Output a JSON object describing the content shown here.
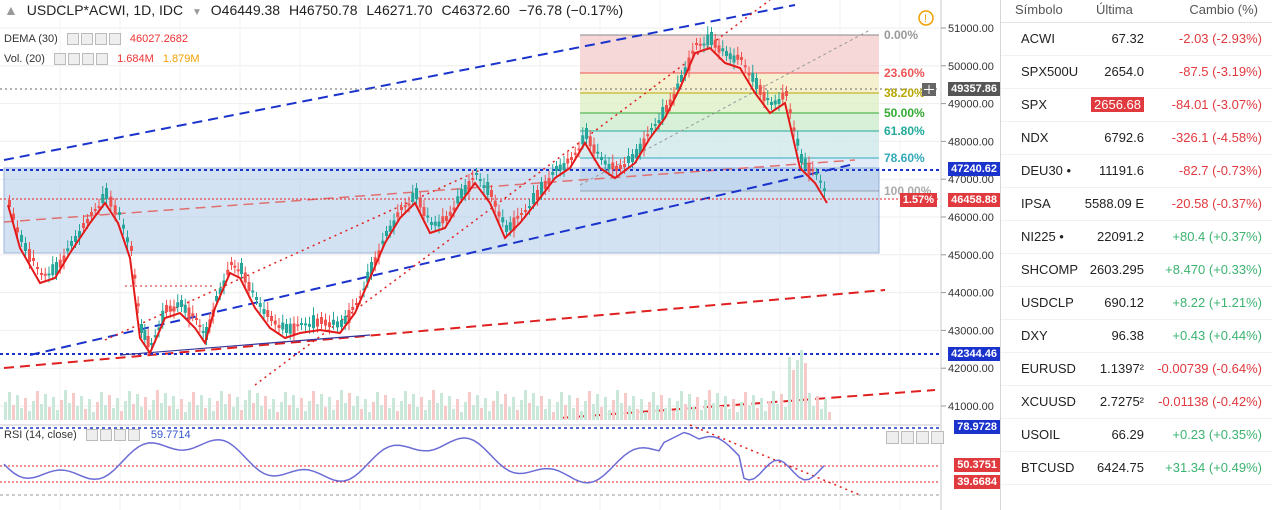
{
  "legend": {
    "symbol": "USDCLP*ACWI, 1D, IDC",
    "open": "O46449.38",
    "high": "H46750.78",
    "low": "L46271.70",
    "close": "C46372.60",
    "change": "−76.78 (−0.17%)"
  },
  "indicators": {
    "dema_label": "DEMA (30)",
    "dema_value": "46027.2682",
    "vol_label": "Vol. (20)",
    "vol_value1": "1.684M",
    "vol_value2": "1.879M",
    "rsi_label": "RSI (14, close)",
    "rsi_value": "59.7714"
  },
  "price_axis": {
    "ticks": [
      "51000.00",
      "50000.00",
      "49000.00",
      "48000.00",
      "47000.00",
      "46000.00",
      "45000.00",
      "44000.00",
      "43000.00",
      "42000.00",
      "41000.00"
    ],
    "tag_49357": "49357.86",
    "tag_47240": "47240.62",
    "tag_46458": "46458.88",
    "tag_pct": "1.57%",
    "tag_42344": "42344.46"
  },
  "rsi_axis": {
    "tag_high": "78.9728",
    "tag_mid": "50.3751",
    "tag_low": "39.6684"
  },
  "fib": {
    "levels": [
      "0.00%",
      "23.60%",
      "38.20%",
      "50.00%",
      "61.80%",
      "78.60%",
      "100.00%"
    ]
  },
  "watchlist": {
    "headers": {
      "symbol": "Símbolo",
      "last": "Última",
      "change": "Cambio (%)"
    },
    "rows": [
      {
        "symbol": "ACWI",
        "last": "67.32",
        "change": "-2.03 (-2.93%)",
        "dir": "neg"
      },
      {
        "symbol": "SPX500U",
        "last": "2654.0",
        "change": "-87.5 (-3.19%)",
        "dir": "neg"
      },
      {
        "symbol": "SPX",
        "last": "2656.68",
        "change": "-84.01 (-3.07%)",
        "dir": "neg",
        "highlight": true
      },
      {
        "symbol": "NDX",
        "last": "6792.6",
        "change": "-326.1 (-4.58%)",
        "dir": "neg"
      },
      {
        "symbol": "DEU30 •",
        "last": "11191.6",
        "change": "-82.7 (-0.73%)",
        "dir": "neg"
      },
      {
        "symbol": "IPSA",
        "last": "5588.09 E",
        "change": "-20.58 (-0.37%)",
        "dir": "neg"
      },
      {
        "symbol": "NI225 •",
        "last": "22091.2",
        "change": "+80.4 (+0.37%)",
        "dir": "pos"
      },
      {
        "symbol": "SHCOMP",
        "last": "2603.295",
        "change": "+8.470 (+0.33%)",
        "dir": "pos"
      },
      {
        "symbol": "USDCLP",
        "last": "690.12",
        "change": "+8.22 (+1.21%)",
        "dir": "pos"
      },
      {
        "symbol": "DXY",
        "last": "96.38",
        "change": "+0.43 (+0.44%)",
        "dir": "pos"
      },
      {
        "symbol": "EURUSD",
        "last": "1.1397²",
        "change": "-0.00739 (-0.64%)",
        "dir": "neg"
      },
      {
        "symbol": "XCUUSD",
        "last": "2.7275²",
        "change": "-0.01138 (-0.42%)",
        "dir": "neg"
      },
      {
        "symbol": "USOIL",
        "last": "66.29",
        "change": "+0.23 (+0.35%)",
        "dir": "pos"
      },
      {
        "symbol": "BTCUSD",
        "last": "6424.75",
        "change": "+31.34 (+0.49%)",
        "dir": "pos"
      }
    ]
  }
}
